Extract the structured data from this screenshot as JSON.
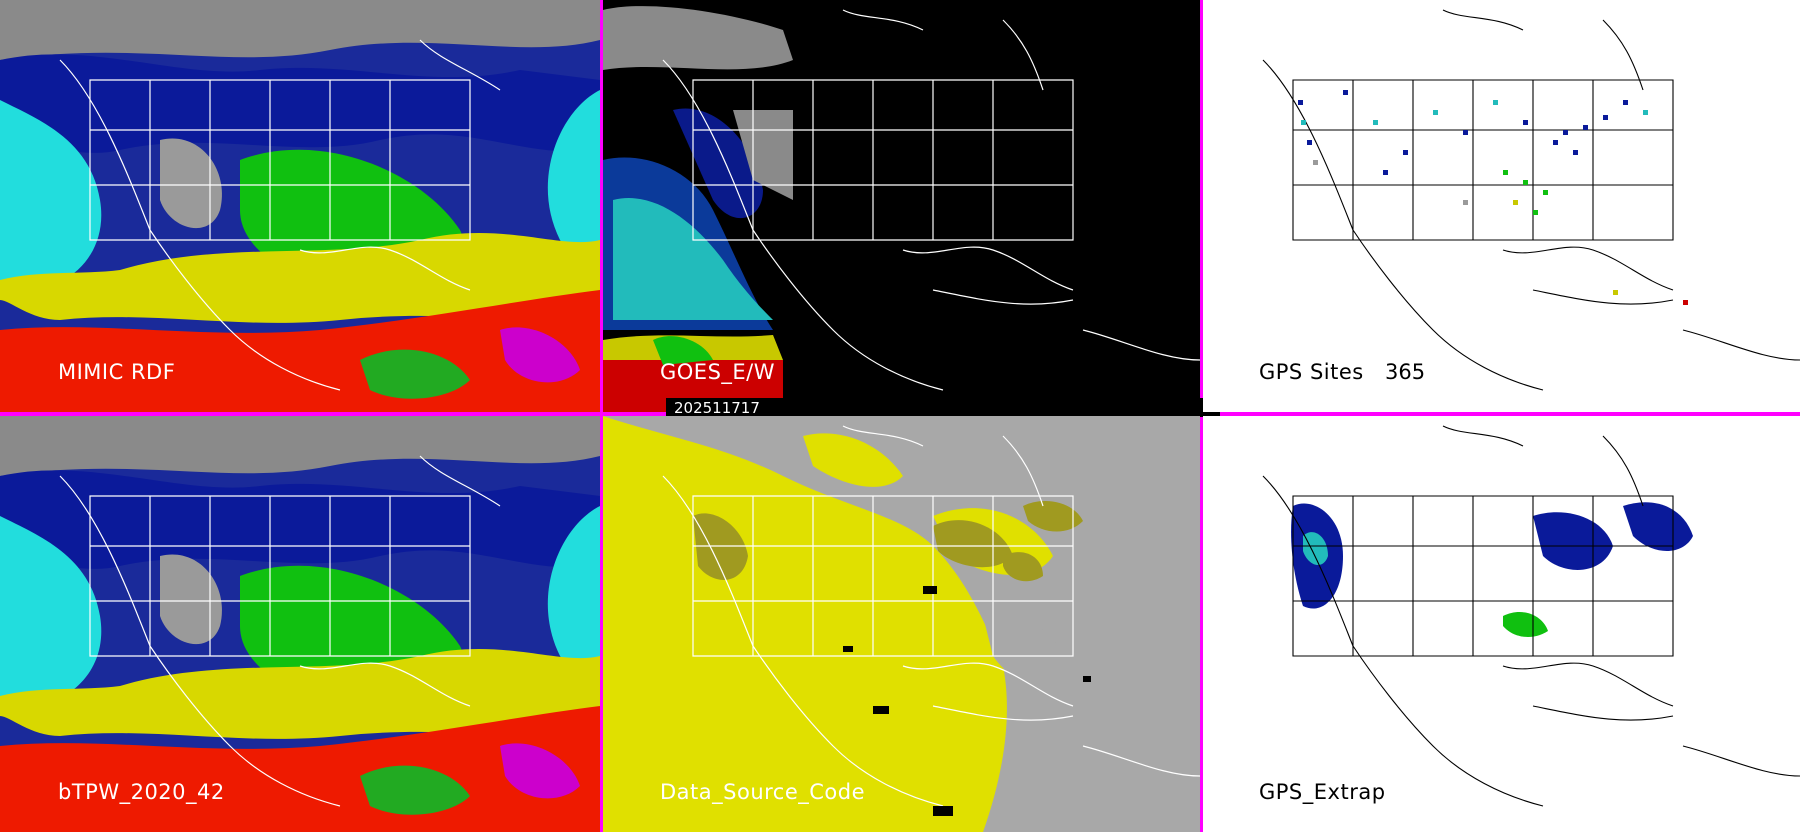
{
  "panels": [
    {
      "id": "mimic",
      "label": "MIMIC RDF",
      "theme": "satellite"
    },
    {
      "id": "goes",
      "label": "GOES_E/W",
      "theme": "sparse"
    },
    {
      "id": "gps_sites",
      "label": "GPS Sites",
      "count": "365",
      "theme": "sites"
    },
    {
      "id": "btpw",
      "label": "bTPW_2020_42",
      "theme": "satellite"
    },
    {
      "id": "dsc",
      "label": "Data_Source_Code",
      "theme": "source"
    },
    {
      "id": "gps_extrap",
      "label": "GPS_Extrap",
      "theme": "extrap"
    }
  ],
  "timestamp": "202511717",
  "colors": {
    "divider": "#ff00ff",
    "tpw_scale": [
      "#9a9a9a",
      "#1a1a9a",
      "#0033dd",
      "#00cccc",
      "#00c800",
      "#c8c800",
      "#dd2200",
      "#ff0000",
      "#cc00cc"
    ],
    "source_yellow": "#e0e000",
    "source_olive": "#a09a20",
    "source_gray": "#a8a8a8"
  }
}
